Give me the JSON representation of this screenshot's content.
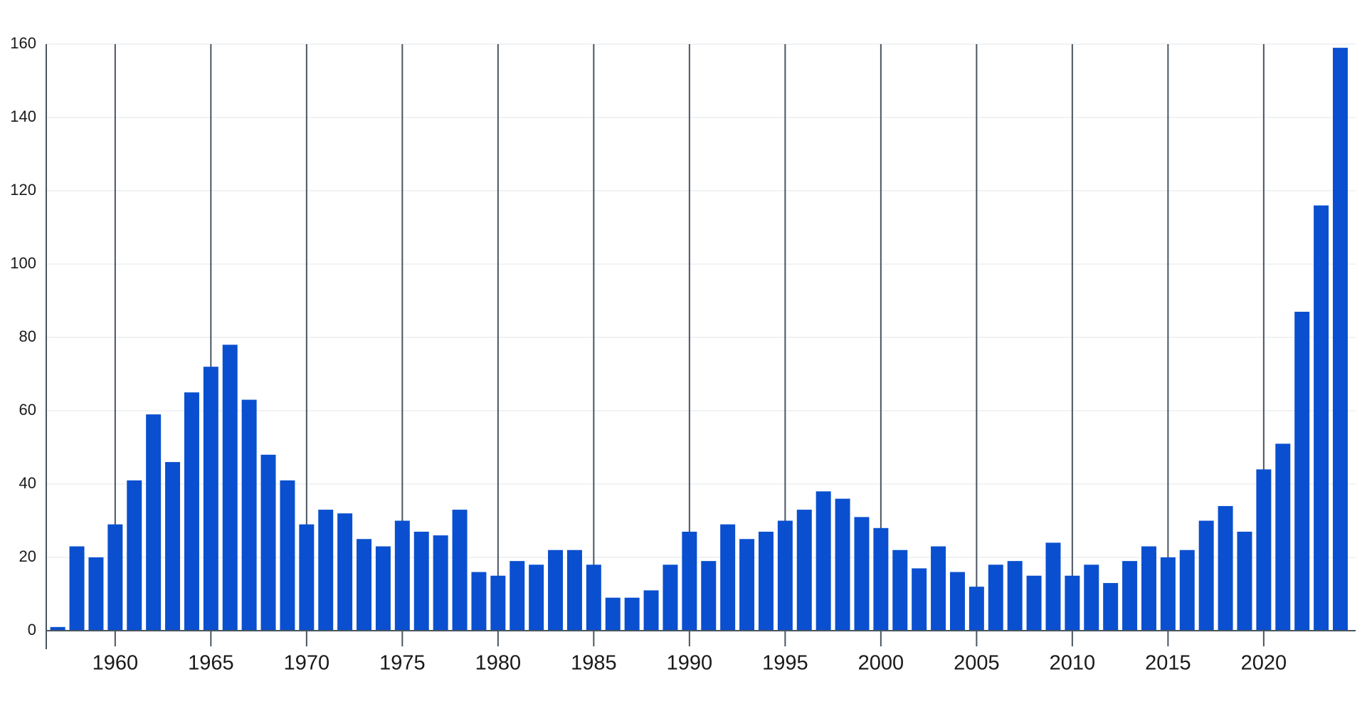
{
  "chart_data": {
    "type": "bar",
    "x": [
      1957,
      1958,
      1959,
      1960,
      1961,
      1962,
      1963,
      1964,
      1965,
      1966,
      1967,
      1968,
      1969,
      1970,
      1971,
      1972,
      1973,
      1974,
      1975,
      1976,
      1977,
      1978,
      1979,
      1980,
      1981,
      1982,
      1983,
      1984,
      1985,
      1986,
      1987,
      1988,
      1989,
      1990,
      1991,
      1992,
      1993,
      1994,
      1995,
      1996,
      1997,
      1998,
      1999,
      2000,
      2001,
      2002,
      2003,
      2004,
      2005,
      2006,
      2007,
      2008,
      2009,
      2010,
      2011,
      2012,
      2013,
      2014,
      2015,
      2016,
      2017,
      2018,
      2019,
      2020,
      2021,
      2022,
      2023,
      2024
    ],
    "values": [
      1,
      23,
      20,
      29,
      41,
      59,
      46,
      65,
      72,
      78,
      63,
      48,
      41,
      29,
      33,
      32,
      25,
      23,
      30,
      27,
      26,
      33,
      16,
      15,
      19,
      18,
      22,
      22,
      18,
      9,
      9,
      11,
      18,
      27,
      19,
      29,
      25,
      27,
      30,
      33,
      38,
      36,
      31,
      28,
      22,
      17,
      23,
      16,
      12,
      18,
      19,
      15,
      24,
      15,
      18,
      13,
      19,
      23,
      20,
      22,
      30,
      34,
      27,
      44,
      51,
      87,
      116,
      159
    ],
    "color": "#0a4fcf",
    "xlim": [
      1956.4,
      2024.8
    ],
    "xticks": [
      1960,
      1965,
      1970,
      1975,
      1980,
      1985,
      1990,
      1995,
      2000,
      2005,
      2010,
      2015,
      2020
    ],
    "ylim": [
      0,
      160
    ],
    "yticks": [
      0,
      20,
      40,
      60,
      80,
      100,
      120,
      140,
      160
    ],
    "grid": true
  }
}
